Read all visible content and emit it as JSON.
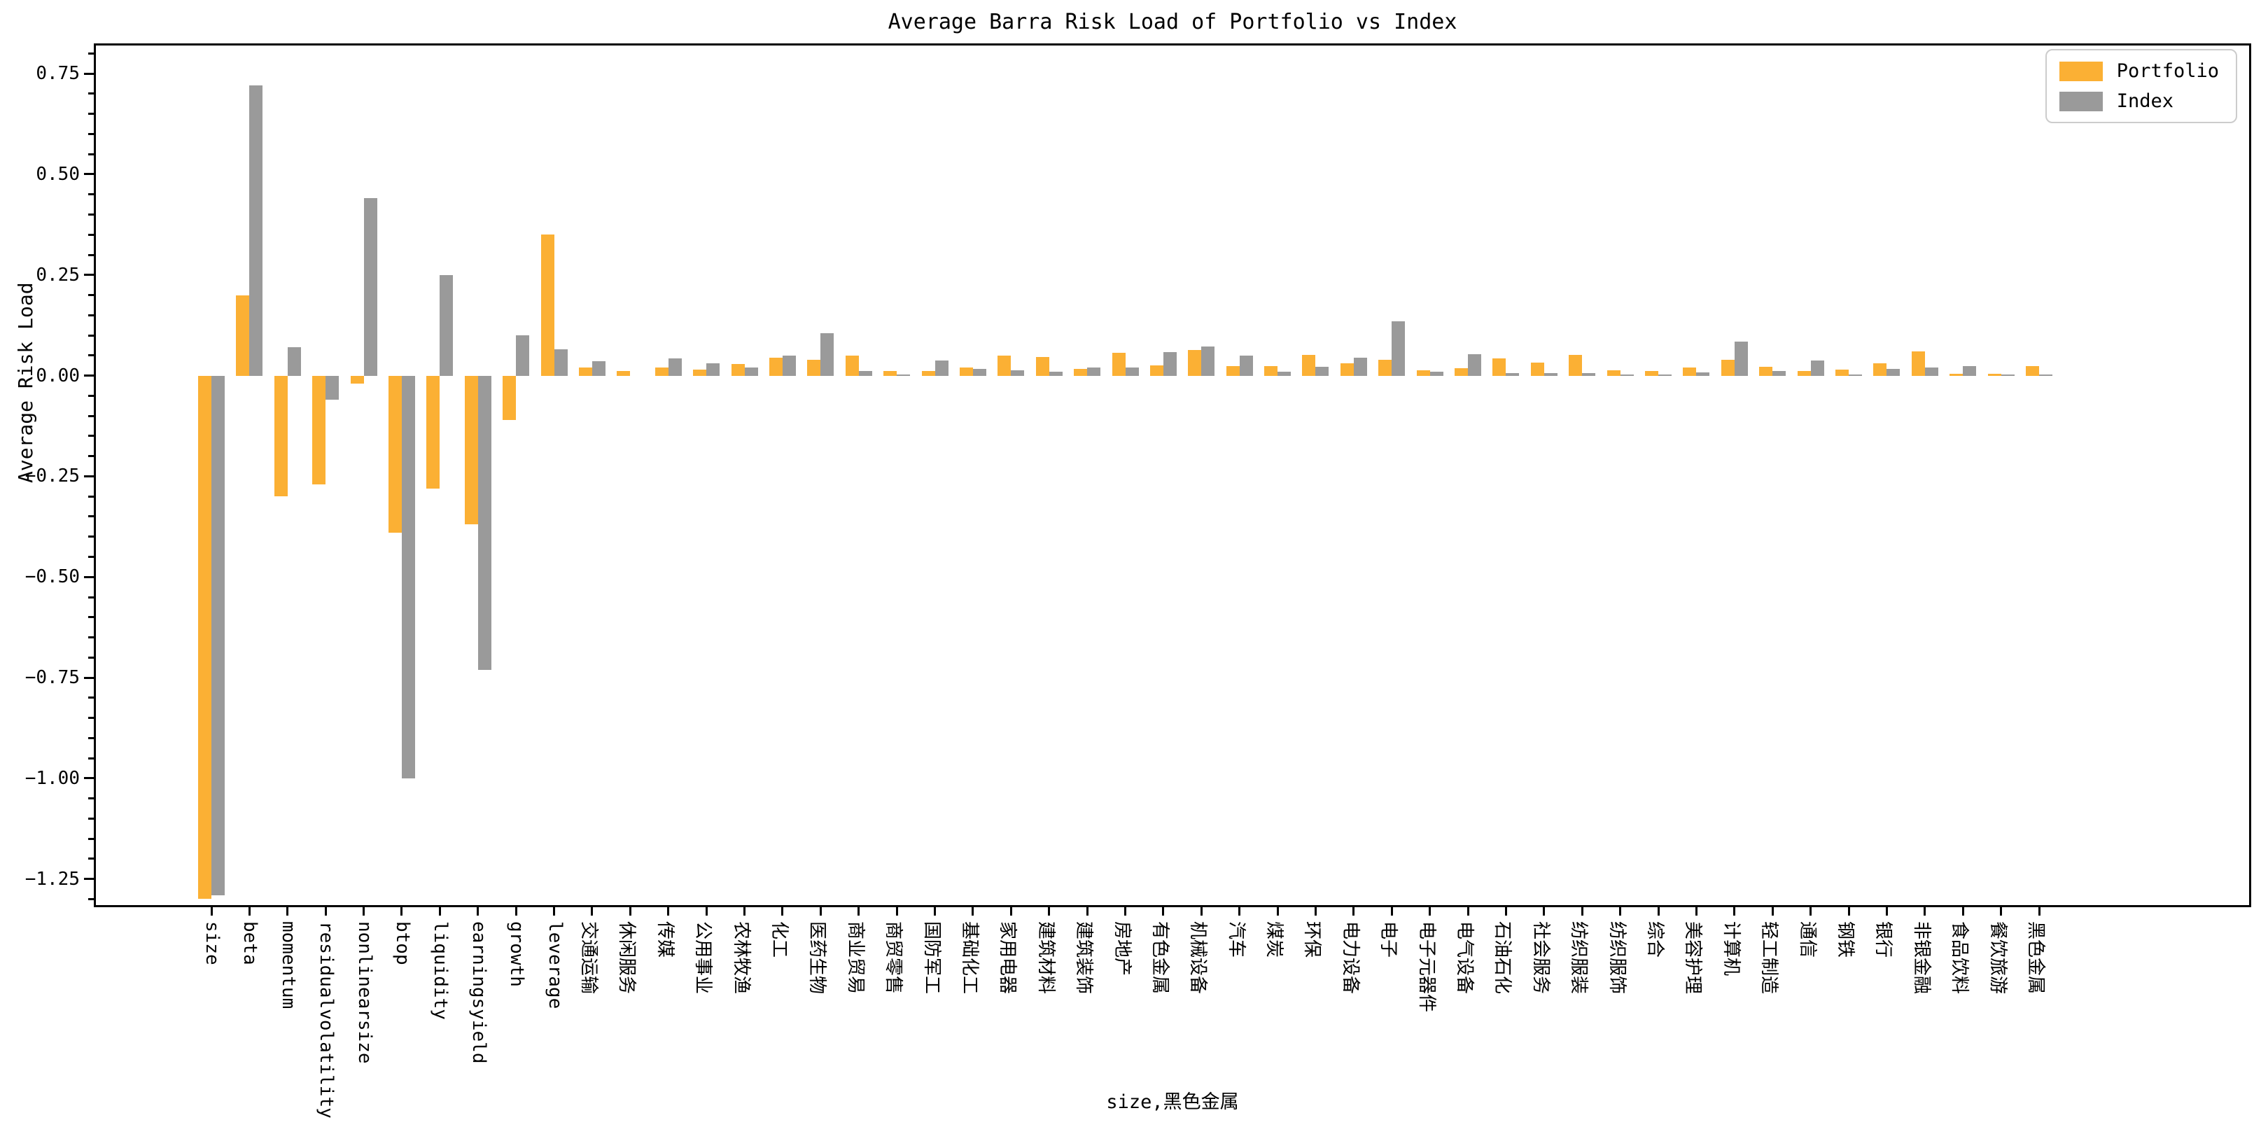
{
  "title": "Average Barra Risk Load of Portfolio vs Index",
  "ylabel": "Average Risk Load",
  "xlabel": "size,黑色金属",
  "legend": {
    "portfolio_label": "Portfolio",
    "index_label": "Index",
    "position": "upper right"
  },
  "colors": {
    "portfolio": "#FBB034",
    "index": "#9A9A9A",
    "axis": "#000000",
    "legend_border": "#cccccc",
    "background": "#ffffff"
  },
  "yaxis": {
    "tick_labels": [
      "0.75",
      "0.50",
      "0.25",
      "0.00",
      "−0.25",
      "−0.50",
      "−0.75",
      "−1.00",
      "−1.25"
    ],
    "tick_values": [
      0.75,
      0.5,
      0.25,
      0.0,
      -0.25,
      -0.5,
      -0.75,
      -1.0,
      -1.25
    ],
    "minor_tick_step": 0.05
  },
  "chart_data": {
    "type": "bar",
    "title": "Average Barra Risk Load of Portfolio vs Index",
    "xlabel": "size,黑色金属",
    "ylabel": "Average Risk Load",
    "ylim": [
      -1.32,
      0.825
    ],
    "grid": false,
    "legend_position": "upper right",
    "categories": [
      "size",
      "beta",
      "momentum",
      "residualvolatility",
      "nonlinearsize",
      "btop",
      "liquidity",
      "earningsyield",
      "growth",
      "leverage",
      "交通运输",
      "休闲服务",
      "传媒",
      "公用事业",
      "农林牧渔",
      "化工",
      "医药生物",
      "商业贸易",
      "商贸零售",
      "国防军工",
      "基础化工",
      "家用电器",
      "建筑材料",
      "建筑装饰",
      "房地产",
      "有色金属",
      "机械设备",
      "汽车",
      "煤炭",
      "环保",
      "电力设备",
      "电子",
      "电子元器件",
      "电气设备",
      "石油石化",
      "社会服务",
      "纺织服装",
      "纺织服饰",
      "综合",
      "美容护理",
      "计算机",
      "轻工制造",
      "通信",
      "钢铁",
      "银行",
      "非银金融",
      "食品饮料",
      "餐饮旅游",
      "黑色金属"
    ],
    "series": [
      {
        "name": "Portfolio",
        "values": [
          -1.3,
          0.2,
          -0.3,
          -0.27,
          -0.02,
          -0.39,
          -0.28,
          -0.37,
          -0.11,
          0.35,
          0.02,
          0.012,
          0.02,
          0.015,
          0.029,
          0.045,
          0.039,
          0.049,
          0.012,
          0.012,
          0.02,
          0.05,
          0.047,
          0.016,
          0.056,
          0.025,
          0.064,
          0.023,
          0.023,
          0.052,
          0.031,
          0.04,
          0.014,
          0.018,
          0.042,
          0.032,
          0.051,
          0.014,
          0.012,
          0.02,
          0.039,
          0.022,
          0.012,
          0.015,
          0.03,
          0.06,
          0.004,
          0.005,
          0.023
        ]
      },
      {
        "name": "Index",
        "values": [
          -1.29,
          0.72,
          0.07,
          -0.06,
          0.44,
          -1.0,
          0.25,
          -0.73,
          0.1,
          0.065,
          0.035,
          0.0,
          0.042,
          0.031,
          0.02,
          0.05,
          0.105,
          0.012,
          0.003,
          0.037,
          0.016,
          0.013,
          0.009,
          0.02,
          0.02,
          0.058,
          0.072,
          0.049,
          0.009,
          0.022,
          0.045,
          0.135,
          0.009,
          0.054,
          0.007,
          0.006,
          0.007,
          0.003,
          0.002,
          0.008,
          0.085,
          0.012,
          0.038,
          0.002,
          0.017,
          0.021,
          0.024,
          0.002,
          0.002
        ]
      }
    ]
  }
}
